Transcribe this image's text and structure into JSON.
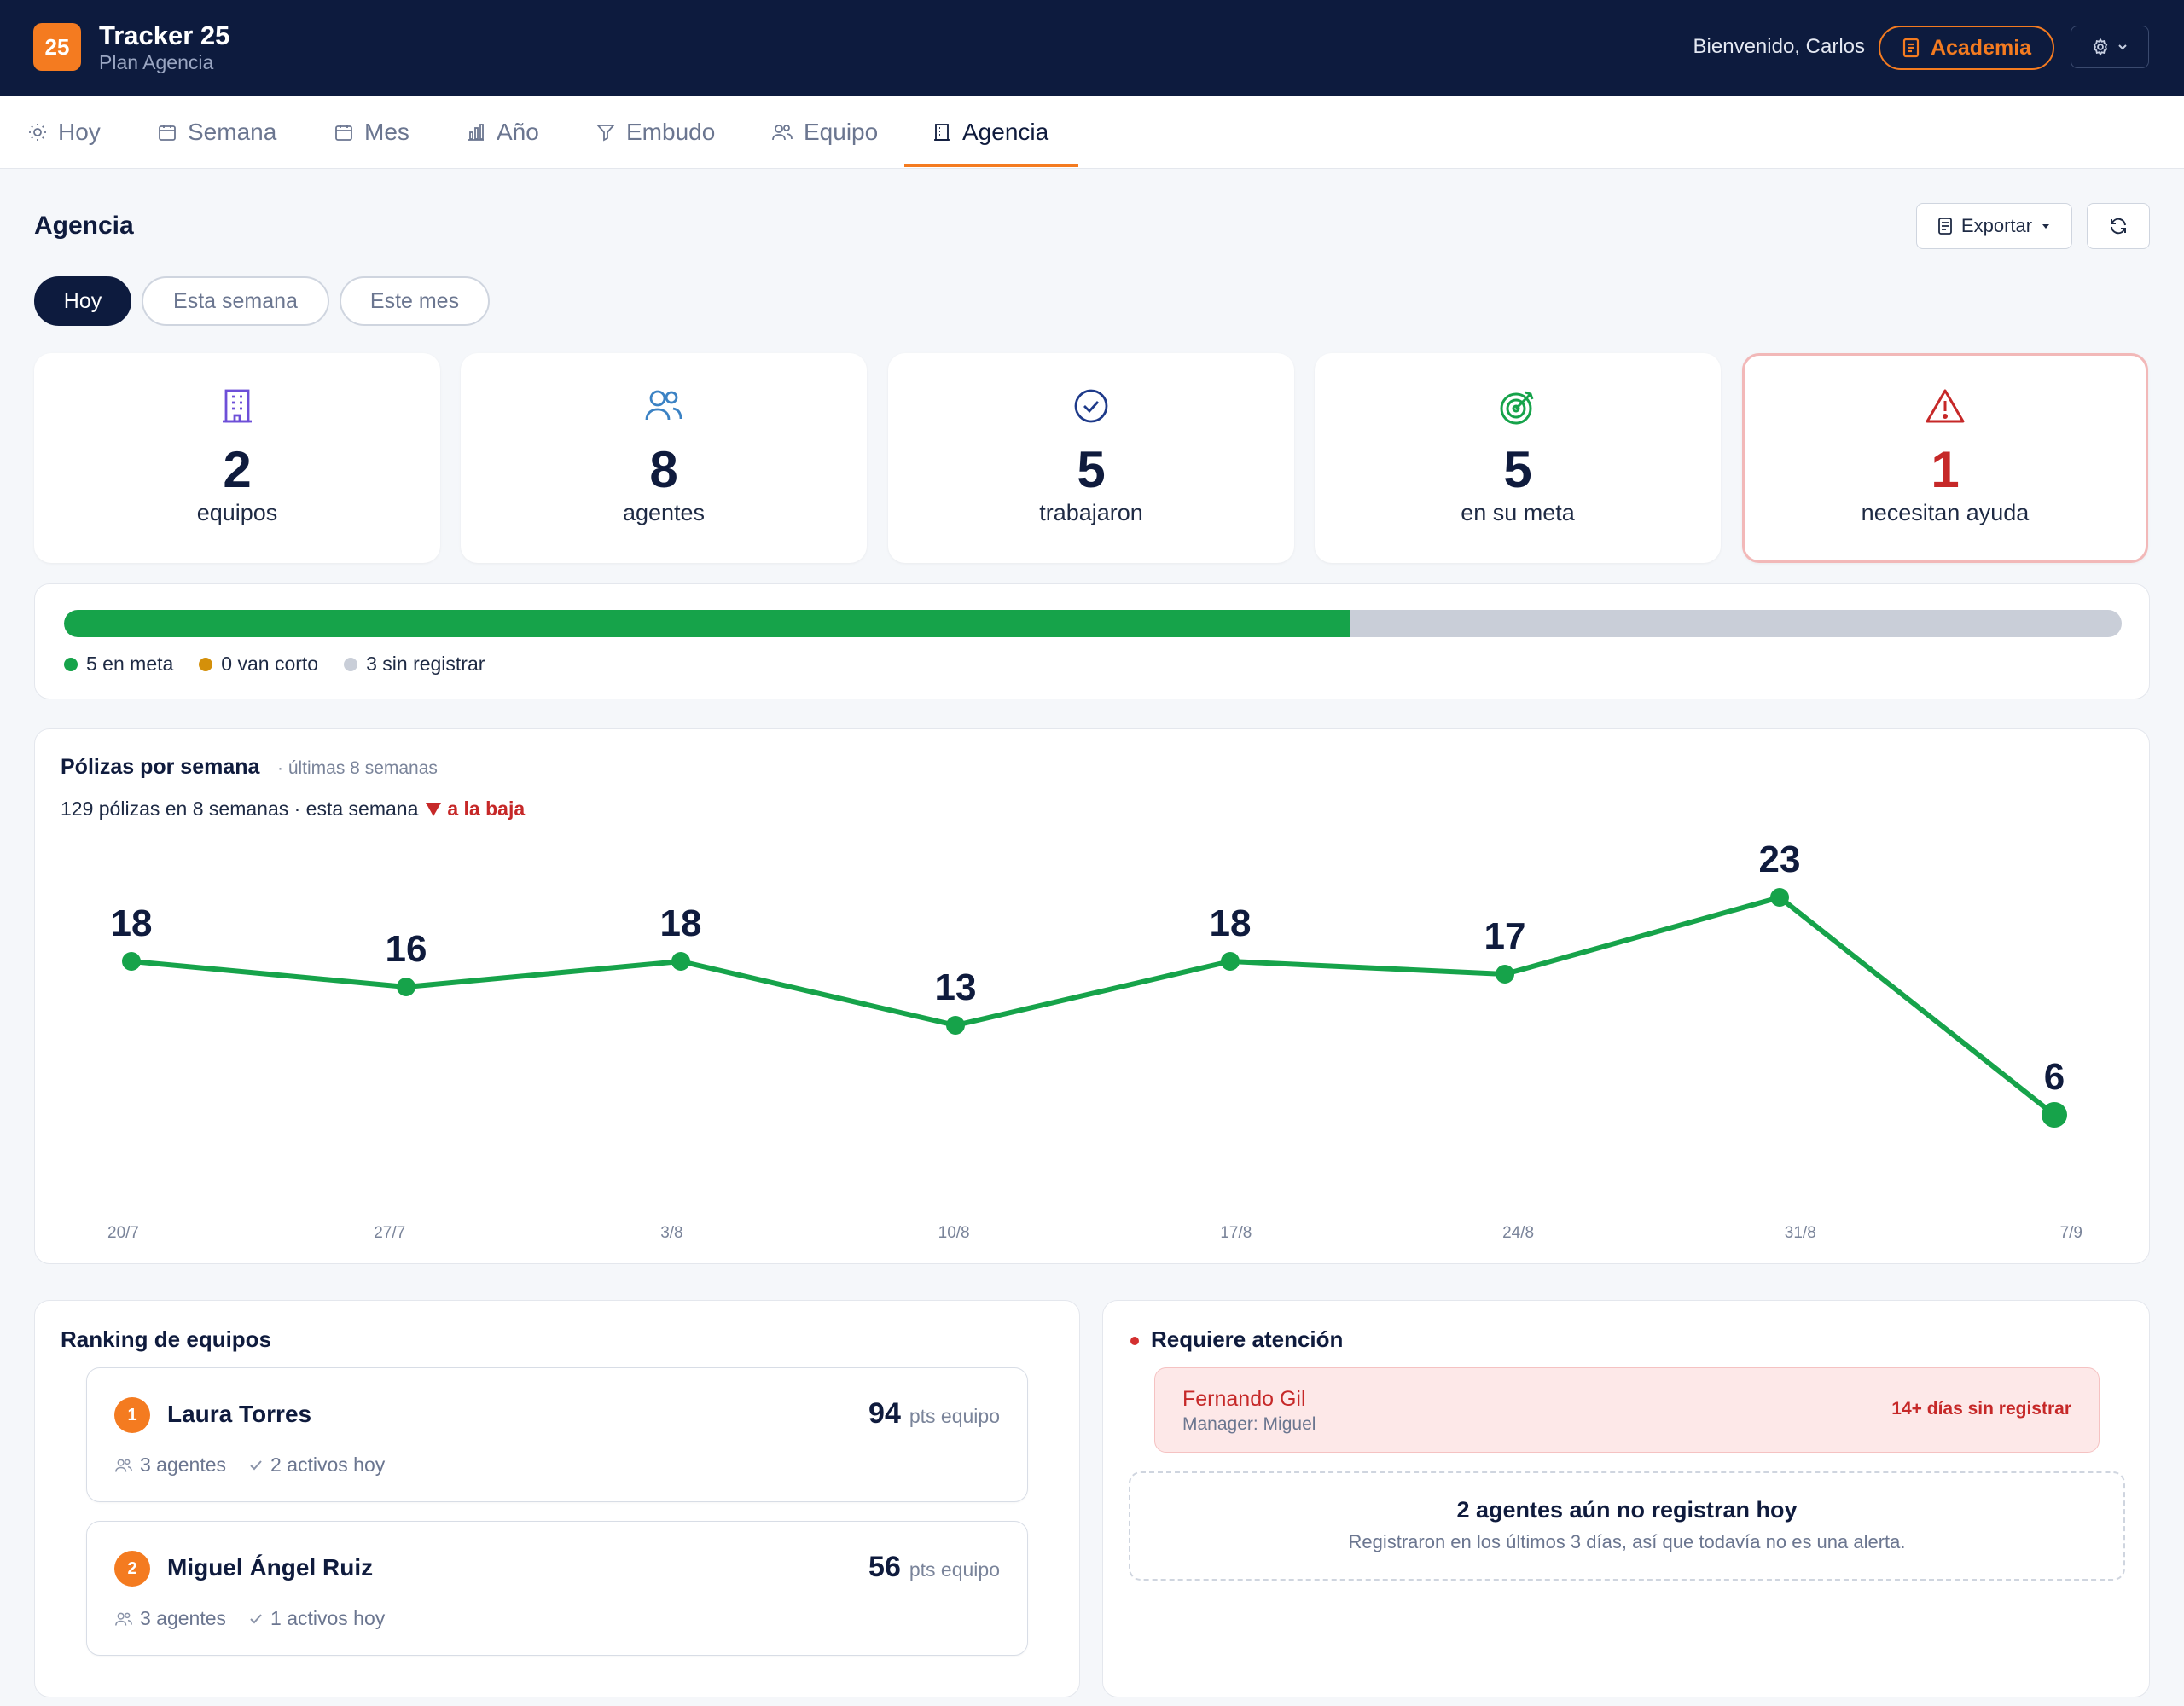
{
  "header": {
    "logo_text": "25",
    "app_title": "Tracker 25",
    "plan": "Plan Agencia",
    "welcome": "Bienvenido, Carlos",
    "academia_label": "Academia"
  },
  "tabs": [
    {
      "label": "Hoy",
      "icon": "sun-icon"
    },
    {
      "label": "Semana",
      "icon": "calendar-icon"
    },
    {
      "label": "Mes",
      "icon": "calendar-icon"
    },
    {
      "label": "Año",
      "icon": "bar-chart-icon"
    },
    {
      "label": "Embudo",
      "icon": "funnel-icon"
    },
    {
      "label": "Equipo",
      "icon": "users-icon"
    },
    {
      "label": "Agencia",
      "icon": "building-icon",
      "active": true
    }
  ],
  "page": {
    "title": "Agencia",
    "export_label": "Exportar",
    "periods": [
      "Hoy",
      "Esta semana",
      "Este mes"
    ],
    "active_period": "Hoy"
  },
  "stats": [
    {
      "value": "2",
      "label": "equipos",
      "icon": "building-icon",
      "color": "#6d4fd8"
    },
    {
      "value": "8",
      "label": "agentes",
      "icon": "users-icon",
      "color": "#3b82c4"
    },
    {
      "value": "5",
      "label": "trabajaron",
      "icon": "check-circle-icon",
      "color": "#1e3a8a"
    },
    {
      "value": "5",
      "label": "en su meta",
      "icon": "target-icon",
      "color": "#16a34a"
    },
    {
      "value": "1",
      "label": "necesitan ayuda",
      "icon": "warning-icon",
      "color": "#c62828"
    }
  ],
  "progress": {
    "en_meta_fraction": 0.625,
    "legend": [
      {
        "label": "5 en meta",
        "color": "#16a34a"
      },
      {
        "label": "0 van corto",
        "color": "#d4900a"
      },
      {
        "label": "3 sin registrar",
        "color": "#c9ced8"
      }
    ]
  },
  "chart": {
    "title": "Pólizas por semana",
    "subtitle": "· últimas 8 semanas",
    "summary": "129 pólizas en 8 semanas · esta semana",
    "trend": "a la baja"
  },
  "chart_data": {
    "type": "line",
    "x": [
      "20/7",
      "27/7",
      "3/8",
      "10/8",
      "17/8",
      "24/8",
      "31/8",
      "7/9"
    ],
    "series": [
      {
        "values": [
          18,
          16,
          18,
          13,
          18,
          17,
          23,
          6
        ]
      }
    ],
    "color": "#16a34a",
    "grid": false
  },
  "ranking": {
    "title": "Ranking de equipos",
    "teams": [
      {
        "rank": "1",
        "name": "Laura Torres",
        "pts": "94",
        "pts_unit": "pts equipo",
        "agents": "3 agentes",
        "active": "2 activos hoy"
      },
      {
        "rank": "2",
        "name": "Miguel Ángel Ruiz",
        "pts": "56",
        "pts_unit": "pts equipo",
        "agents": "3 agentes",
        "active": "1 activos hoy"
      }
    ]
  },
  "attention": {
    "title": "Requiere atención",
    "items": [
      {
        "name": "Fernando Gil",
        "manager": "Manager: Miguel",
        "badge": "14+ días sin registrar"
      }
    ],
    "pending_title": "2 agentes aún no registran hoy",
    "pending_sub": "Registraron en los últimos 3 días, así que todavía no es una alerta."
  }
}
